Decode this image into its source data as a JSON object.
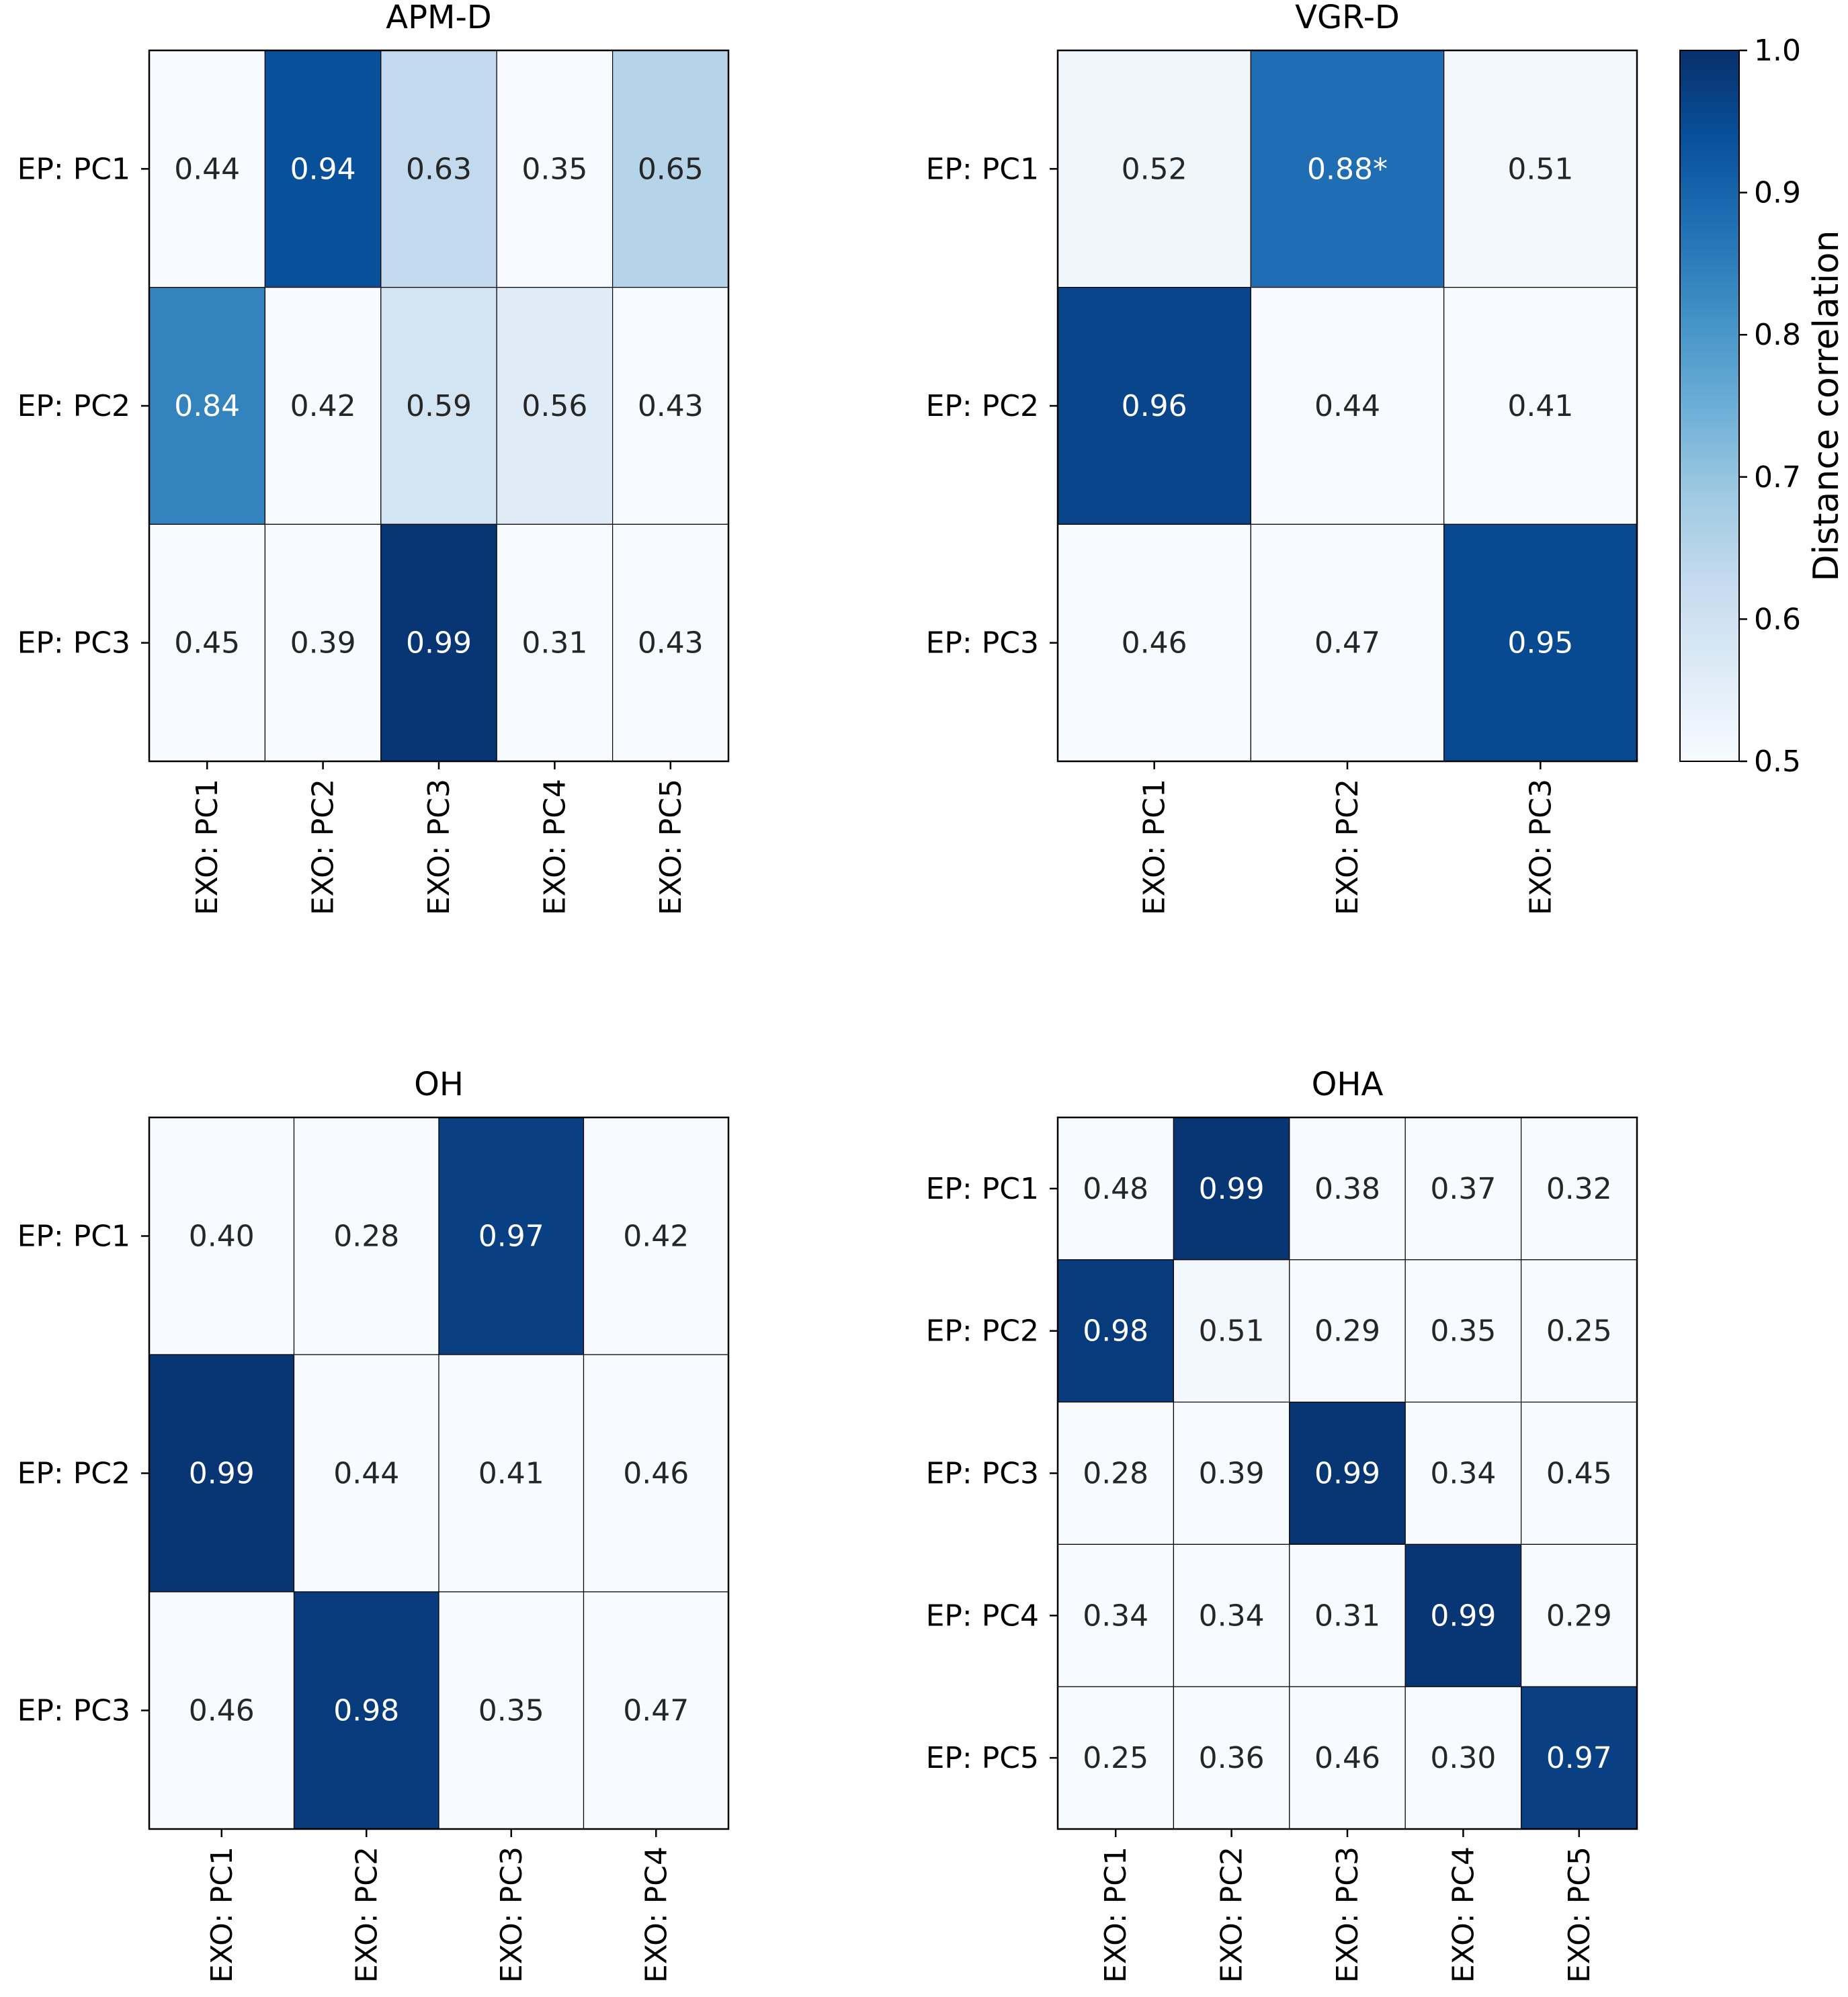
{
  "chart_data": [
    {
      "type": "heatmap",
      "title": "APM-D",
      "rows": [
        "EP: PC1",
        "EP: PC2",
        "EP: PC3"
      ],
      "columns": [
        "EXO: PC1",
        "EXO: PC2",
        "EXO: PC3",
        "EXO: PC4",
        "EXO: PC5"
      ],
      "values": [
        [
          0.44,
          0.94,
          0.63,
          0.35,
          0.65
        ],
        [
          0.84,
          0.42,
          0.59,
          0.56,
          0.43
        ],
        [
          0.45,
          0.39,
          0.99,
          0.31,
          0.43
        ]
      ],
      "labels": [
        [
          "0.44",
          "0.94",
          "0.63",
          "0.35",
          "0.65"
        ],
        [
          "0.84",
          "0.42",
          "0.59",
          "0.56",
          "0.43"
        ],
        [
          "0.45",
          "0.39",
          "0.99",
          "0.31",
          "0.43"
        ]
      ]
    },
    {
      "type": "heatmap",
      "title": "VGR-D",
      "rows": [
        "EP: PC1",
        "EP: PC2",
        "EP: PC3"
      ],
      "columns": [
        "EXO: PC1",
        "EXO: PC2",
        "EXO: PC3"
      ],
      "values": [
        [
          0.52,
          0.88,
          0.51
        ],
        [
          0.96,
          0.44,
          0.41
        ],
        [
          0.46,
          0.47,
          0.95
        ]
      ],
      "labels": [
        [
          "0.52",
          "0.88*",
          "0.51"
        ],
        [
          "0.96",
          "0.44",
          "0.41"
        ],
        [
          "0.46",
          "0.47",
          "0.95"
        ]
      ]
    },
    {
      "type": "heatmap",
      "title": "OH",
      "rows": [
        "EP: PC1",
        "EP: PC2",
        "EP: PC3"
      ],
      "columns": [
        "EXO: PC1",
        "EXO: PC2",
        "EXO: PC3",
        "EXO: PC4"
      ],
      "values": [
        [
          0.4,
          0.28,
          0.97,
          0.42
        ],
        [
          0.99,
          0.44,
          0.41,
          0.46
        ],
        [
          0.46,
          0.98,
          0.35,
          0.47
        ]
      ],
      "labels": [
        [
          "0.40",
          "0.28",
          "0.97",
          "0.42"
        ],
        [
          "0.99",
          "0.44",
          "0.41",
          "0.46"
        ],
        [
          "0.46",
          "0.98",
          "0.35",
          "0.47"
        ]
      ]
    },
    {
      "type": "heatmap",
      "title": "OHA",
      "rows": [
        "EP: PC1",
        "EP: PC2",
        "EP: PC3",
        "EP: PC4",
        "EP: PC5"
      ],
      "columns": [
        "EXO: PC1",
        "EXO: PC2",
        "EXO: PC3",
        "EXO: PC4",
        "EXO: PC5"
      ],
      "values": [
        [
          0.48,
          0.99,
          0.38,
          0.37,
          0.32
        ],
        [
          0.98,
          0.51,
          0.29,
          0.35,
          0.25
        ],
        [
          0.28,
          0.39,
          0.99,
          0.34,
          0.45
        ],
        [
          0.34,
          0.34,
          0.31,
          0.99,
          0.29
        ],
        [
          0.25,
          0.36,
          0.46,
          0.3,
          0.97
        ]
      ],
      "labels": [
        [
          "0.48",
          "0.99",
          "0.38",
          "0.37",
          "0.32"
        ],
        [
          "0.98",
          "0.51",
          "0.29",
          "0.35",
          "0.25"
        ],
        [
          "0.28",
          "0.39",
          "0.99",
          "0.34",
          "0.45"
        ],
        [
          "0.34",
          "0.34",
          "0.31",
          "0.99",
          "0.29"
        ],
        [
          "0.25",
          "0.36",
          "0.46",
          "0.30",
          "0.97"
        ]
      ]
    }
  ],
  "colorbar": {
    "label": "Distance correlation",
    "range": [
      0.5,
      1.0
    ],
    "ticks": [
      "1.0",
      "0.9",
      "0.8",
      "0.7",
      "0.6",
      "0.5"
    ],
    "colormap": "Blues",
    "stops": [
      "#f7fbff",
      "#deebf7",
      "#c6dbef",
      "#9ecae1",
      "#6baed6",
      "#4292c6",
      "#2171b5",
      "#08519c",
      "#08306b"
    ]
  }
}
